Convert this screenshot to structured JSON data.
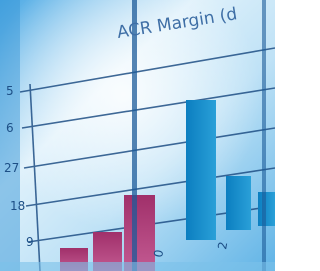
{
  "image": {
    "title": "ACR Margin (d",
    "axis_labels": [
      "5",
      "6",
      "27",
      "18",
      "9"
    ],
    "bottom_labels": [
      "0",
      "2"
    ]
  }
}
